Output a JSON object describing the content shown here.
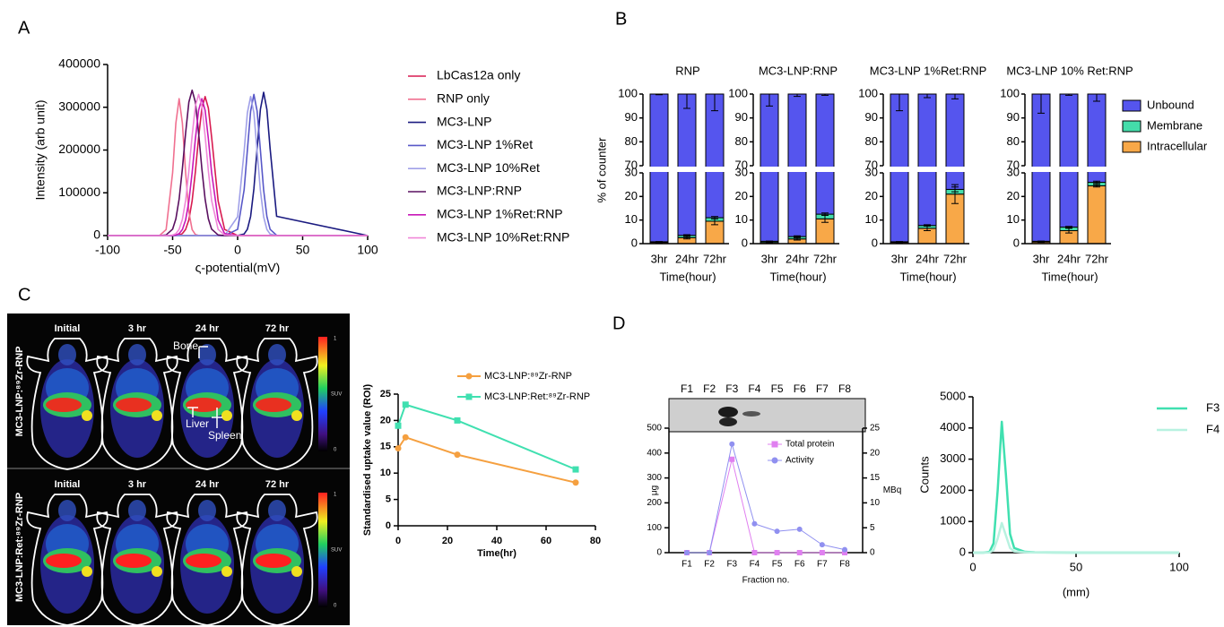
{
  "panel_labels": [
    "A",
    "B",
    "C",
    "D"
  ],
  "imaging": {
    "time_labels": [
      "Initial",
      "3 hr",
      "24 hr",
      "72 hr"
    ],
    "row_labels": [
      "MC3-LNP:⁸⁹Zr-RNP",
      "MC3-LNP:Ret:⁸⁹Zr-RNP"
    ],
    "annotations": [
      "Bone",
      "Liver",
      "Spleen"
    ],
    "colorbar": {
      "max": "1",
      "label": "SUV",
      "min": "0"
    }
  },
  "chart_data": [
    {
      "type": "line",
      "xlabel": "ς-potential(mV)",
      "ylabel": "Intensity (arb unit)",
      "x": [
        -100,
        -60,
        -55,
        -50,
        -47.5,
        -45,
        -42.5,
        -40,
        -37.5,
        -35,
        -32.5,
        -30,
        -27.5,
        -25,
        -22.5,
        -20,
        -15,
        -10,
        0,
        5,
        7.5,
        10,
        12.5,
        15,
        17.5,
        20,
        22.5,
        25,
        30,
        100
      ],
      "xlim": [
        -100,
        100
      ],
      "xticks": [
        -100,
        -50,
        0,
        50,
        100
      ],
      "ylim": [
        0,
        400000
      ],
      "yticks": [
        0,
        100000,
        200000,
        300000,
        400000
      ],
      "legend": "right",
      "series": [
        {
          "name": "LbCas12a only",
          "color": "#d81b50",
          "values": [
            0,
            0,
            0,
            0,
            300,
            1300,
            4600,
            14300,
            37000,
            81000,
            149000,
            230000,
            298000,
            325000,
            298000,
            230000,
            81000,
            14300,
            0,
            0,
            0,
            0,
            0,
            0,
            0,
            0,
            0,
            0,
            0,
            0
          ]
        },
        {
          "name": "RNP only",
          "color": "#f07090",
          "values": [
            0,
            300,
            14000,
            147000,
            263000,
            320000,
            263000,
            147000,
            55000,
            14000,
            2600,
            300,
            0,
            0,
            0,
            0,
            0,
            0,
            0,
            0,
            0,
            0,
            0,
            0,
            0,
            0,
            0,
            0,
            0,
            0
          ]
        },
        {
          "name": "MC3-LNP",
          "color": "#1a1a80",
          "values": [
            0,
            0,
            0,
            0,
            0,
            0,
            0,
            0,
            0,
            0,
            0,
            0,
            0,
            0,
            0,
            0,
            0,
            0,
            100,
            3700,
            14700,
            45000,
            109000,
            203000,
            295000,
            335000,
            295000,
            203000,
            45000,
            0
          ]
        },
        {
          "name": "MC3-LNP 1%Ret",
          "color": "#5858c8",
          "values": [
            0,
            0,
            0,
            0,
            0,
            0,
            0,
            0,
            0,
            0,
            0,
            0,
            0,
            0,
            0,
            0,
            0,
            0,
            14500,
            107000,
            200000,
            291000,
            330000,
            291000,
            200000,
            107000,
            44600,
            14500,
            700,
            0
          ]
        },
        {
          "name": "MC3-LNP 10%Ret",
          "color": "#a0a0e8",
          "values": [
            0,
            0,
            0,
            0,
            0,
            0,
            0,
            0,
            0,
            0,
            0,
            0,
            0,
            0,
            0,
            0,
            0,
            0,
            44000,
            197000,
            287000,
            325000,
            287000,
            197000,
            106000,
            44000,
            14300,
            3600,
            100,
            0
          ]
        },
        {
          "name": "MC3-LNP:RNP",
          "color": "#5a1060",
          "values": [
            0,
            0,
            1400,
            15000,
            39000,
            85000,
            156000,
            240000,
            312000,
            340000,
            312000,
            240000,
            156000,
            85000,
            39000,
            15000,
            1400,
            0,
            0,
            0,
            0,
            0,
            0,
            0,
            0,
            0,
            0,
            0,
            0,
            0
          ]
        },
        {
          "name": "MC3-LNP 1%Ret:RNP",
          "color": "#c818b8",
          "values": [
            0,
            0,
            0,
            300,
            1300,
            4500,
            14000,
            36500,
            80000,
            147000,
            226000,
            293000,
            320000,
            293000,
            226000,
            147000,
            36500,
            4500,
            0,
            0,
            0,
            0,
            0,
            0,
            0,
            0,
            0,
            0,
            0,
            0
          ]
        },
        {
          "name": "MC3-LNP 10%Ret:RNP",
          "color": "#f088d8",
          "values": [
            0,
            0,
            0,
            1300,
            4600,
            14500,
            37600,
            82000,
            151000,
            233000,
            303000,
            330000,
            303000,
            233000,
            151000,
            82000,
            14500,
            1300,
            0,
            0,
            0,
            0,
            0,
            0,
            0,
            0,
            0,
            0,
            0,
            0
          ]
        }
      ]
    },
    {
      "type": "stacked_bar",
      "ylabel": "% of counter",
      "xlabel": "Time(hour)",
      "categories": [
        "3hr",
        "24hr",
        "72hr"
      ],
      "ylim": [
        0,
        100
      ],
      "ybreak": [
        30,
        70
      ],
      "yticks": [
        0,
        10,
        20,
        30,
        70,
        80,
        90,
        100
      ],
      "legend": "right",
      "series": [
        {
          "name": "Unbound",
          "color": "#5555ee"
        },
        {
          "name": "Membrane",
          "color": "#44ddaa"
        },
        {
          "name": "Intracellular",
          "color": "#f8a848"
        }
      ],
      "panels": [
        {
          "title": "RNP",
          "values": [
            [
              99.2,
              96.5,
              89
            ],
            [
              0.3,
              1,
              1.5
            ],
            [
              0.5,
              2.5,
              9.5
            ]
          ],
          "errors": [
            [
              0.3,
              6,
              7
            ],
            [
              0.1,
              0.3,
              0.5
            ],
            [
              0.2,
              0.5,
              1.5
            ]
          ]
        },
        {
          "title": "MC3-LNP:RNP",
          "values": [
            [
              99,
              97,
              87.5
            ],
            [
              0.5,
              1,
              2
            ],
            [
              0.5,
              2,
              10.5
            ]
          ],
          "errors": [
            [
              5,
              1,
              0.5
            ],
            [
              0.1,
              0.3,
              0.5
            ],
            [
              0.2,
              0.5,
              1.5
            ]
          ]
        },
        {
          "title": "MC3-LNP 1%Ret:RNP",
          "values": [
            [
              99.2,
              92.3,
              77
            ],
            [
              0.3,
              1.2,
              2
            ],
            [
              0.5,
              6.5,
              21
            ]
          ],
          "errors": [
            [
              7,
              1.5,
              2
            ],
            [
              0.1,
              0.3,
              1
            ],
            [
              0.2,
              1,
              4
            ]
          ]
        },
        {
          "title": "MC3-LNP 10% Ret:RNP",
          "values": [
            [
              99,
              93,
              74
            ],
            [
              0.3,
              1.5,
              1.5
            ],
            [
              0.7,
              5.5,
              24.5
            ]
          ],
          "errors": [
            [
              8,
              0.5,
              3
            ],
            [
              0.1,
              0.3,
              0.5
            ],
            [
              0.2,
              1,
              0.5
            ]
          ]
        }
      ]
    },
    {
      "type": "line",
      "xlabel": "Time(hr)",
      "ylabel": "Standardised uptake value (ROI)",
      "x": [
        0,
        3,
        24,
        72
      ],
      "xlim": [
        0,
        80
      ],
      "xticks": [
        0,
        20,
        40,
        60,
        80
      ],
      "ylim": [
        0,
        25
      ],
      "yticks": [
        0,
        5,
        10,
        15,
        20,
        25
      ],
      "legend": "top",
      "series": [
        {
          "name": "MC3-LNP:⁸⁹Zr-RNP",
          "color": "#f5a040",
          "marker": "circle",
          "values": [
            14.7,
            16.8,
            13.5,
            8.2
          ]
        },
        {
          "name": "MC3-LNP:Ret:⁸⁹Zr-RNP",
          "color": "#40e0b0",
          "marker": "square",
          "values": [
            19,
            23,
            20,
            10.7
          ]
        }
      ]
    },
    {
      "type": "line",
      "xlabel": "Fraction no.",
      "ylabel": "μg",
      "y2label": "MBq",
      "categories": [
        "F1",
        "F2",
        "F3",
        "F4",
        "F5",
        "F6",
        "F7",
        "F8"
      ],
      "ylim": [
        0,
        500
      ],
      "yticks": [
        0,
        100,
        200,
        300,
        400,
        500
      ],
      "y2lim": [
        0,
        25
      ],
      "y2ticks": [
        0,
        5,
        10,
        15,
        20,
        25
      ],
      "legend": "top",
      "series": [
        {
          "name": "Total protein",
          "color": "#e080f0",
          "marker": "square",
          "values": [
            0,
            0,
            375,
            0,
            0,
            0,
            0,
            0
          ]
        },
        {
          "name": "Activity",
          "color": "#9090f0",
          "marker": "circle",
          "axis": "y2",
          "values": [
            0,
            0,
            21.8,
            5.8,
            4.3,
            4.7,
            1.6,
            0.6
          ]
        }
      ]
    },
    {
      "type": "line",
      "xlabel": "(mm)",
      "ylabel": "Counts",
      "x": [
        0,
        5,
        8,
        10,
        12,
        14,
        16,
        18,
        20,
        25,
        30,
        40,
        50,
        60,
        70,
        80,
        90,
        100
      ],
      "xlim": [
        0,
        100
      ],
      "xticks": [
        0,
        50,
        100
      ],
      "ylim": [
        0,
        5000
      ],
      "yticks": [
        0,
        1000,
        2000,
        3000,
        4000,
        5000
      ],
      "legend": "right",
      "series": [
        {
          "name": "F3",
          "color": "#40e0b0",
          "values": [
            0,
            0,
            20,
            300,
            2000,
            4200,
            2500,
            600,
            150,
            30,
            10,
            5,
            0,
            0,
            0,
            0,
            0,
            0
          ]
        },
        {
          "name": "F4",
          "color": "#b8f2e0",
          "values": [
            0,
            0,
            5,
            80,
            450,
            950,
            550,
            150,
            40,
            10,
            5,
            0,
            0,
            0,
            0,
            0,
            0,
            0
          ]
        }
      ]
    }
  ]
}
